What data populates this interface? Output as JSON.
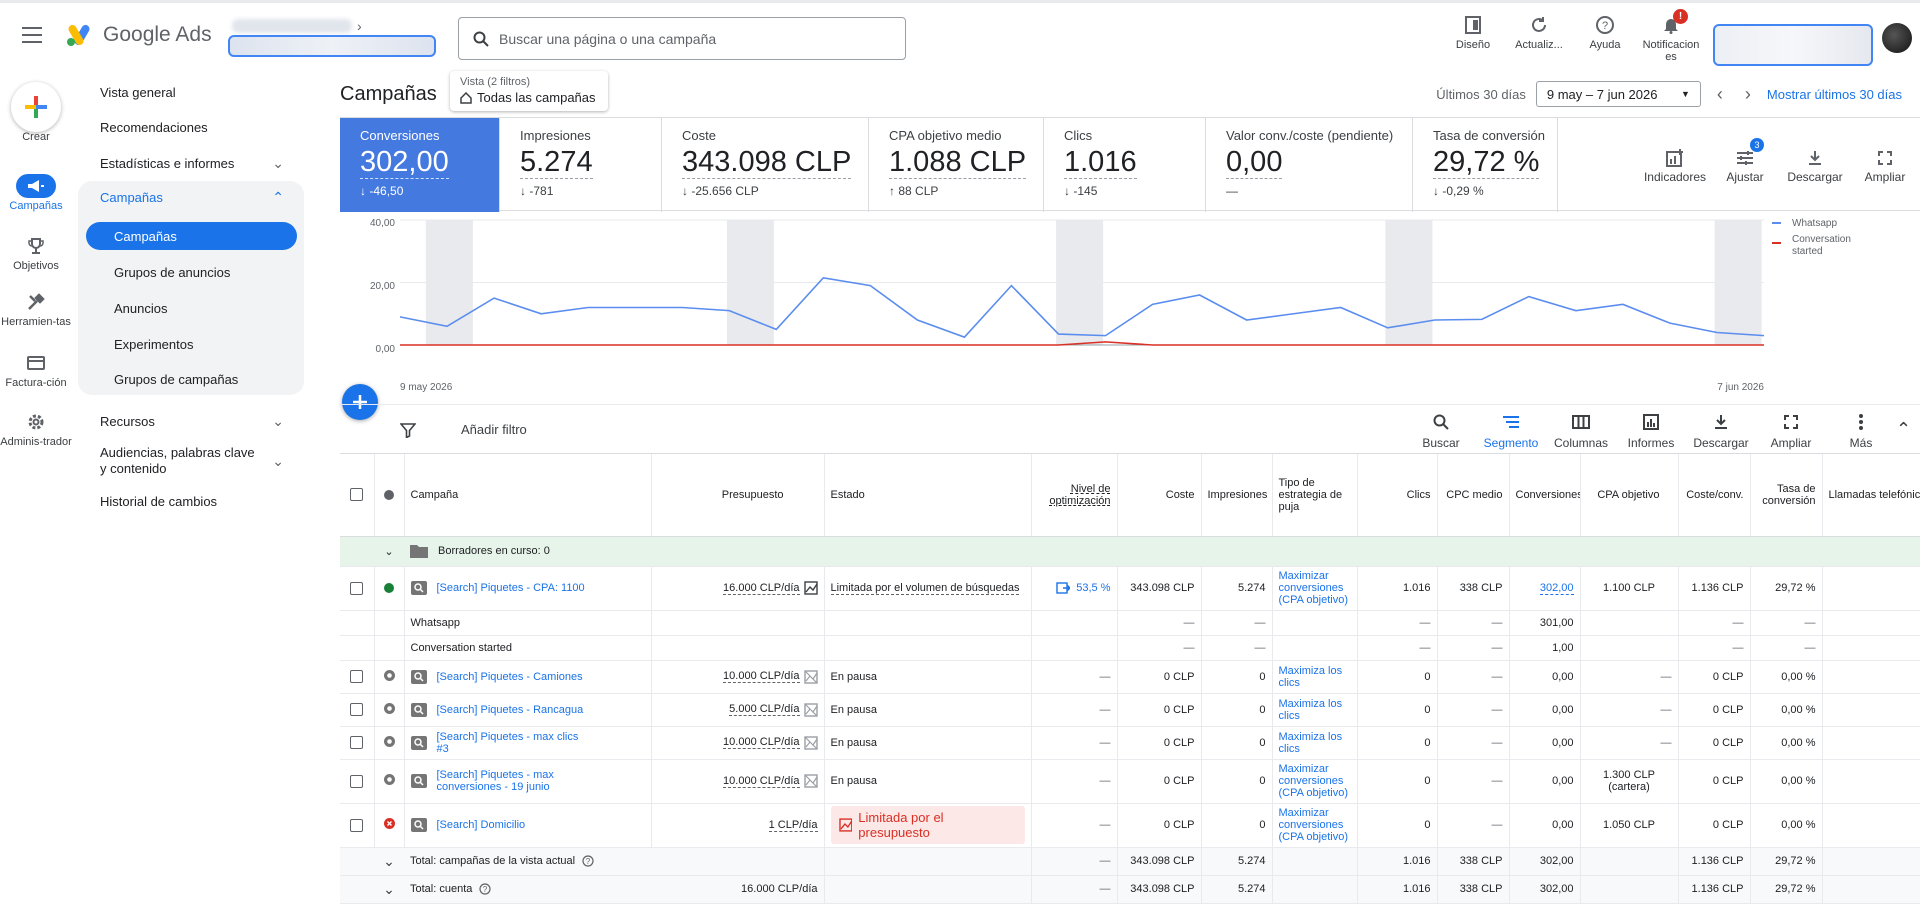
{
  "app": {
    "name": "Google Ads",
    "search_placeholder": "Buscar una página o una campaña"
  },
  "top_actions": [
    {
      "label": "Diseño",
      "icon": "layout-icon"
    },
    {
      "label": "Actualiz...",
      "icon": "refresh-icon"
    },
    {
      "label": "Ayuda",
      "icon": "help-icon"
    },
    {
      "label": "Notificacion es",
      "icon": "bell-icon",
      "badge": "!"
    }
  ],
  "rail": {
    "create": "Crear",
    "items": [
      {
        "label": "Campañas",
        "icon": "campaigns-icon",
        "active": true
      },
      {
        "label": "Objetivos",
        "icon": "trophy-icon"
      },
      {
        "label": "Herramien-tas",
        "icon": "tools-icon"
      },
      {
        "label": "Factura-ción",
        "icon": "billing-icon"
      },
      {
        "label": "Adminis-trador",
        "icon": "admin-gear-icon"
      }
    ]
  },
  "sidenav": {
    "items": [
      {
        "label": "Vista general"
      },
      {
        "label": "Recomendaciones"
      },
      {
        "label": "Estadísticas e informes",
        "chevron": "expand"
      },
      {
        "label": "Campañas",
        "chevron": "collapse",
        "open": true
      },
      {
        "label": "Recursos",
        "chevron": "expand"
      },
      {
        "label": "Audiencias, palabras clave y contenido",
        "chevron": "expand"
      },
      {
        "label": "Historial de cambios"
      }
    ],
    "campaign_children": [
      "Campañas",
      "Grupos de anuncios",
      "Anuncios",
      "Experimentos",
      "Grupos de campañas"
    ]
  },
  "header": {
    "title": "Campañas",
    "view_small": "Vista (2 filtros)",
    "view_big": "Todas las campañas",
    "date_label": "Últimos 30 días",
    "date_range": "9 may – 7 jun 2026",
    "date_link": "Mostrar últimos 30 días"
  },
  "scorecards": [
    {
      "label": "Conversiones",
      "value": "302,00",
      "delta": "-46,50",
      "dir": "down",
      "active": true
    },
    {
      "label": "Impresiones",
      "value": "5.274",
      "delta": "-781",
      "dir": "down"
    },
    {
      "label": "Coste",
      "value": "343.098 CLP",
      "delta": "-25.656 CLP",
      "dir": "down"
    },
    {
      "label": "CPA objetivo medio",
      "value": "1.088 CLP",
      "delta": "88 CLP",
      "dir": "up"
    },
    {
      "label": "Clics",
      "value": "1.016",
      "delta": "-145",
      "dir": "down"
    },
    {
      "label": "Valor conv./coste (pendiente)",
      "value": "0,00",
      "delta": "—",
      "dir": "none"
    },
    {
      "label": "Tasa de conversión",
      "value": "29,72 %",
      "delta": "-0,29 %",
      "dir": "down"
    }
  ],
  "card_tools": [
    {
      "label": "Indicadores",
      "icon": "add-chart-icon"
    },
    {
      "label": "Ajustar",
      "icon": "tune-icon",
      "badge": "3"
    },
    {
      "label": "Descargar",
      "icon": "download-icon"
    },
    {
      "label": "Ampliar",
      "icon": "fullscreen-icon"
    }
  ],
  "chart_data": {
    "type": "line",
    "x_start": "9 may 2026",
    "x_end": "7 jun 2026",
    "y_ticks": [
      "40,00",
      "20,00",
      "0,00"
    ],
    "ylim": [
      0,
      40
    ],
    "legend_position": "right",
    "weekend_shading": true,
    "series": [
      {
        "name": "Whatsapp",
        "color": "#5b8def",
        "values": [
          9,
          6,
          15,
          10,
          12,
          12,
          12,
          11,
          5,
          21.5,
          19,
          8,
          2.5,
          19,
          3.5,
          3,
          13,
          16,
          8,
          10,
          12,
          5.5,
          8,
          8.2,
          15.5,
          11,
          13,
          7,
          4,
          3
        ]
      },
      {
        "name": "Conversation started",
        "color": "#d93025",
        "values": [
          0,
          0,
          0,
          0,
          0,
          0,
          0,
          0,
          0,
          0,
          0,
          0,
          0,
          0,
          0,
          1,
          0,
          0,
          0,
          0,
          0,
          0,
          0,
          0,
          0,
          0,
          0,
          0,
          0,
          0
        ]
      }
    ]
  },
  "filter_bar": {
    "add_filter": "Añadir filtro",
    "tools": [
      {
        "label": "Buscar",
        "icon": "search-icon"
      },
      {
        "label": "Segmento",
        "icon": "segment-icon",
        "active": true
      },
      {
        "label": "Columnas",
        "icon": "columns-icon"
      },
      {
        "label": "Informes",
        "icon": "reports-icon"
      },
      {
        "label": "Descargar",
        "icon": "download-icon"
      },
      {
        "label": "Ampliar",
        "icon": "fullscreen-icon"
      },
      {
        "label": "Más",
        "icon": "more-vert-icon"
      }
    ]
  },
  "table": {
    "headers": [
      "Campaña",
      "Presupuesto",
      "Estado",
      "Nivel de optimización",
      "Coste",
      "Impresiones",
      "Tipo de estrategia de puja",
      "Clics",
      "CPC medio",
      "Conversiones",
      "CPA objetivo",
      "Coste/conv.",
      "Tasa de conversión",
      "Llamadas telefónicas"
    ],
    "draft_label": "Borradores en curso: 0",
    "rows": [
      {
        "kind": "campaign",
        "status_dot": "green",
        "name": "[Search] Piquetes - CPA: 1100",
        "budget": "16.000 CLP/día",
        "budget_icon": "chart-on",
        "estado": "Limitada por el volumen de búsquedas",
        "estado_style": "dashed",
        "opt": "53,5 %",
        "coste": "343.098 CLP",
        "impr": "5.274",
        "puja": "Maximizar conversiones (CPA objetivo)",
        "clics": "1.016",
        "cpc": "338 CLP",
        "conv": "302,00",
        "cpa": "1.100 CLP",
        "costeconv": "1.136 CLP",
        "tasa": "29,72 %"
      },
      {
        "kind": "segment",
        "name": "Whatsapp",
        "coste": "—",
        "impr": "—",
        "clics": "—",
        "cpc": "—",
        "conv": "301,00",
        "costeconv": "—",
        "tasa": "—"
      },
      {
        "kind": "segment",
        "name": "Conversation started",
        "coste": "—",
        "impr": "—",
        "clics": "—",
        "cpc": "—",
        "conv": "1,00",
        "costeconv": "—",
        "tasa": "—"
      },
      {
        "kind": "campaign",
        "status_dot": "gray",
        "name": "[Search] Piquetes - Camiones",
        "budget": "10.000 CLP/día",
        "budget_icon": "chart-off",
        "estado": "En pausa",
        "opt": "—",
        "coste": "0 CLP",
        "impr": "0",
        "puja": "Maximiza los clics",
        "clics": "0",
        "cpc": "—",
        "conv": "0,00",
        "cpa": "—",
        "costeconv": "0 CLP",
        "tasa": "0,00 %"
      },
      {
        "kind": "campaign",
        "status_dot": "gray",
        "name": "[Search] Piquetes - Rancagua",
        "budget": "5.000 CLP/día",
        "budget_icon": "chart-off",
        "estado": "En pausa",
        "opt": "—",
        "coste": "0 CLP",
        "impr": "0",
        "puja": "Maximiza los clics",
        "clics": "0",
        "cpc": "—",
        "conv": "0,00",
        "cpa": "—",
        "costeconv": "0 CLP",
        "tasa": "0,00 %"
      },
      {
        "kind": "campaign",
        "status_dot": "gray",
        "name": "[Search] Piquetes - max clics #3",
        "budget": "10.000 CLP/día",
        "budget_icon": "chart-off",
        "estado": "En pausa",
        "opt": "—",
        "coste": "0 CLP",
        "impr": "0",
        "puja": "Maximiza los clics",
        "clics": "0",
        "cpc": "—",
        "conv": "0,00",
        "cpa": "—",
        "costeconv": "0 CLP",
        "tasa": "0,00 %"
      },
      {
        "kind": "campaign",
        "status_dot": "gray",
        "name": "[Search] Piquetes - max conversiones - 19 junio",
        "budget": "10.000 CLP/día",
        "budget_icon": "chart-off",
        "estado": "En pausa",
        "opt": "—",
        "coste": "0 CLP",
        "impr": "0",
        "puja": "Maximizar conversiones (CPA objetivo)",
        "clics": "0",
        "cpc": "—",
        "conv": "0,00",
        "cpa": "1.300 CLP (cartera)",
        "costeconv": "0 CLP",
        "tasa": "0,00 %"
      },
      {
        "kind": "campaign",
        "status_dot": "red",
        "name": "[Search] Domicilio",
        "budget": "1 CLP/día",
        "budget_icon": "none",
        "estado": "Limitada por el presupuesto",
        "estado_style": "red",
        "opt": "—",
        "coste": "0 CLP",
        "impr": "0",
        "puja": "Maximizar conversiones (CPA objetivo)",
        "clics": "0",
        "cpc": "—",
        "conv": "0,00",
        "cpa": "1.050 CLP",
        "costeconv": "0 CLP",
        "tasa": "0,00 %"
      }
    ],
    "totals": [
      {
        "label": "Total: campañas de la vista actual",
        "budget": "",
        "opt": "—",
        "coste": "343.098 CLP",
        "impr": "5.274",
        "clics": "1.016",
        "cpc": "338 CLP",
        "conv": "302,00",
        "costeconv": "1.136 CLP",
        "tasa": "29,72 %"
      },
      {
        "label": "Total: cuenta",
        "budget": "16.000 CLP/día",
        "opt": "—",
        "coste": "343.098 CLP",
        "impr": "5.274",
        "clics": "1.016",
        "cpc": "338 CLP",
        "conv": "302,00",
        "costeconv": "1.136 CLP",
        "tasa": "29,72 %"
      }
    ]
  }
}
